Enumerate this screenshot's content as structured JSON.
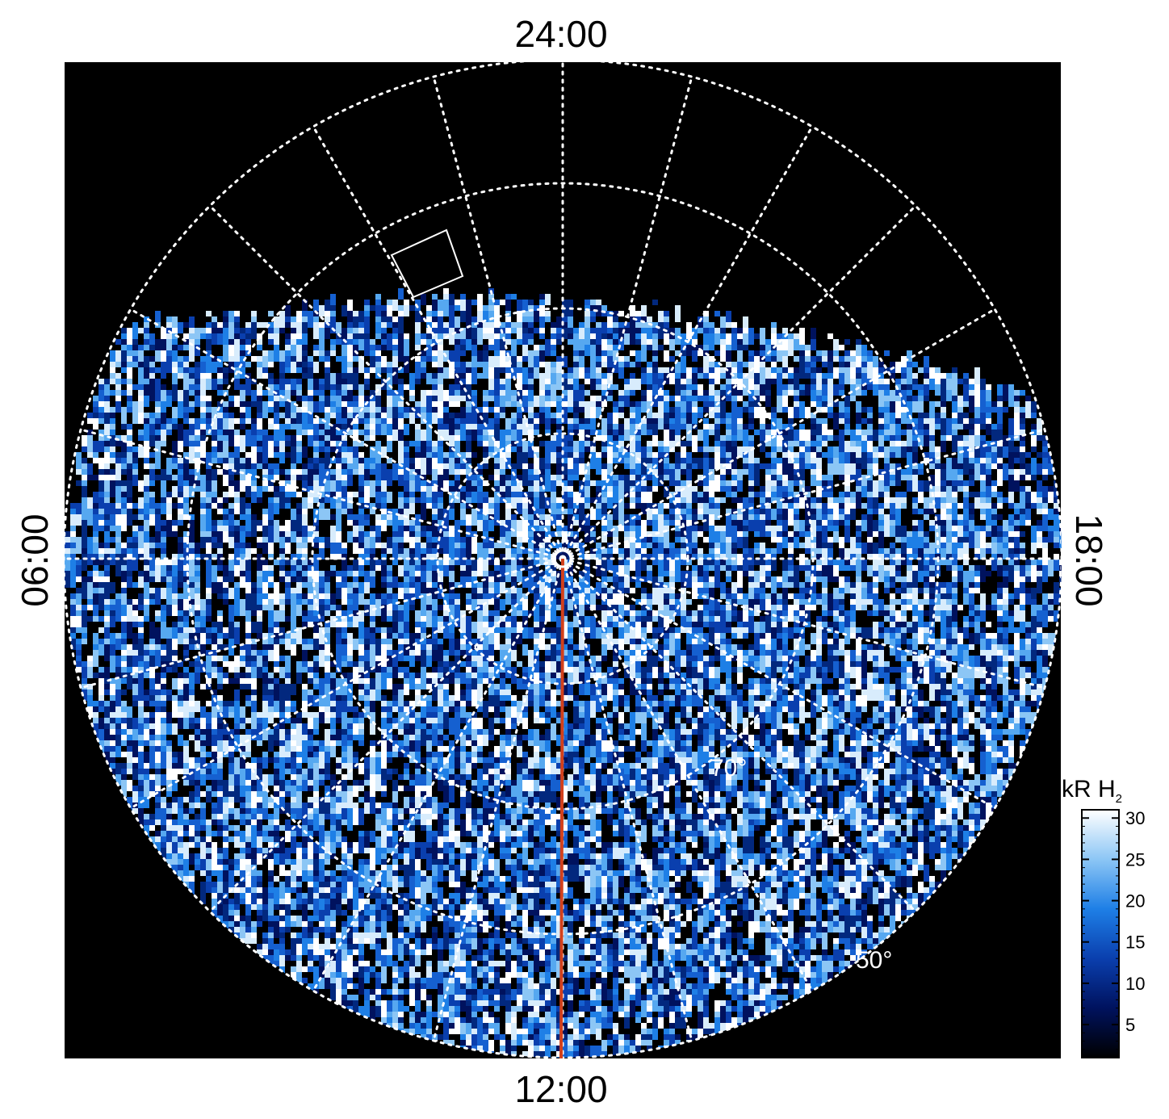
{
  "chart_data": {
    "type": "heatmap",
    "projection": "polar",
    "local_time_labels": {
      "top": "24:00",
      "bottom": "12:00",
      "left": "06:00",
      "right": "18:00"
    },
    "latitude_labels": [
      {
        "value": 70,
        "text": "70°"
      },
      {
        "value": 50,
        "text": "50°"
      }
    ],
    "grid": true,
    "colorbar": {
      "title": "kR H",
      "title_subscript": "2",
      "ticks": [
        {
          "value": 5,
          "label": "5"
        },
        {
          "value": 10,
          "label": "10"
        },
        {
          "value": 15,
          "label": "15"
        },
        {
          "value": 20,
          "label": "20"
        },
        {
          "value": 25,
          "label": "25"
        },
        {
          "value": 30,
          "label": "30"
        }
      ],
      "range": [
        1,
        31
      ],
      "colors": [
        "#000000",
        "#00125e",
        "#0a3fae",
        "#1e7fe6",
        "#8cc6f5",
        "#ffffff"
      ]
    },
    "legend_position": "bottom-right",
    "colors": {
      "background": "#000000",
      "grid": "#ffffff",
      "meridian_line": "#d2401c",
      "box": "#ffffff"
    }
  }
}
